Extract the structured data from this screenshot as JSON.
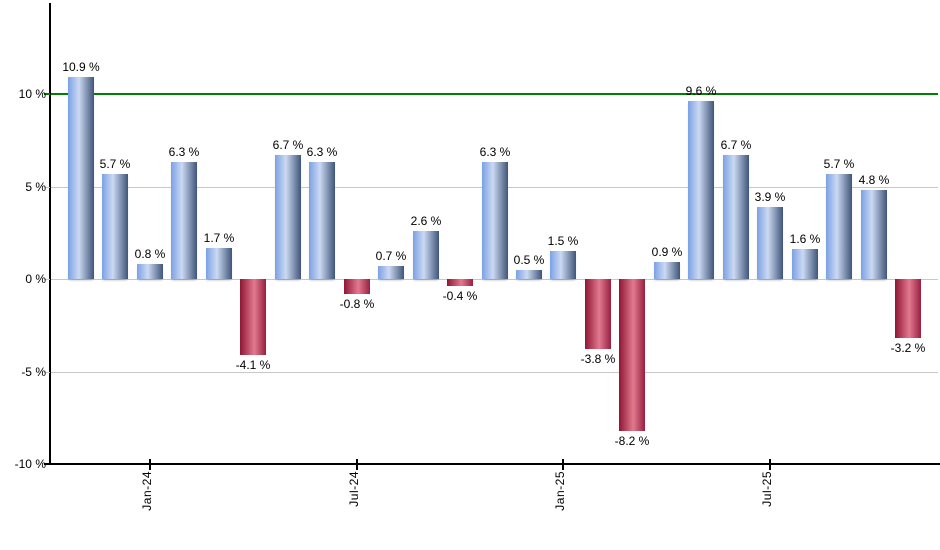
{
  "chart_data": {
    "type": "bar",
    "title": "",
    "xlabel": "",
    "ylabel": "",
    "values": [
      10.9,
      5.7,
      0.8,
      6.3,
      1.7,
      -4.1,
      6.7,
      6.3,
      -0.8,
      0.7,
      2.6,
      -0.4,
      6.3,
      0.5,
      1.5,
      -3.8,
      -8.2,
      0.9,
      9.6,
      6.7,
      3.9,
      1.6,
      5.7,
      4.8,
      -3.2
    ],
    "value_label_suffix": " %",
    "value_labels": [
      "10.9 %",
      "5.7 %",
      "0.8 %",
      "6.3 %",
      "1.7 %",
      "-4.1 %",
      "6.7 %",
      "6.3 %",
      "-0.8 %",
      "0.7 %",
      "2.6 %",
      "-0.4 %",
      "6.3 %",
      "0.5 %",
      "1.5 %",
      "-3.8 %",
      "-8.2 %",
      "0.9 %",
      "9.6 %",
      "6.7 %",
      "3.9 %",
      "1.6 %",
      "5.7 %",
      "4.8 %",
      "-3.2 %"
    ],
    "x_ticks": [
      {
        "label": "Jan-24",
        "bar_index": 2
      },
      {
        "label": "Jul-24",
        "bar_index": 8
      },
      {
        "label": "Jan-25",
        "bar_index": 14
      },
      {
        "label": "Jul-25",
        "bar_index": 20
      }
    ],
    "y_ticks": [
      {
        "label": "10 %",
        "value": 10
      },
      {
        "label": "5 %",
        "value": 5
      },
      {
        "label": "0 %",
        "value": 0
      },
      {
        "label": "-5 %",
        "value": -5
      },
      {
        "label": "-10 %",
        "value": -10
      }
    ],
    "ylim": [
      -10,
      15
    ],
    "gridline_values": [
      5,
      0,
      -5
    ],
    "grid_on": true,
    "legend_position": "none",
    "reference_line": {
      "value": 10,
      "color": "#008000"
    },
    "colors": {
      "positive_bar": [
        "#7BA1E4",
        "#CBD9F2",
        "#3F5579"
      ],
      "negative_bar": [
        "#8E1634",
        "#E2798F",
        "#97203F"
      ],
      "grid": "#C8C8C8",
      "axis": "#000000",
      "plot_top_border": "#C8C8C8",
      "background": "#FFFFFF",
      "label_text": "#000000"
    }
  }
}
